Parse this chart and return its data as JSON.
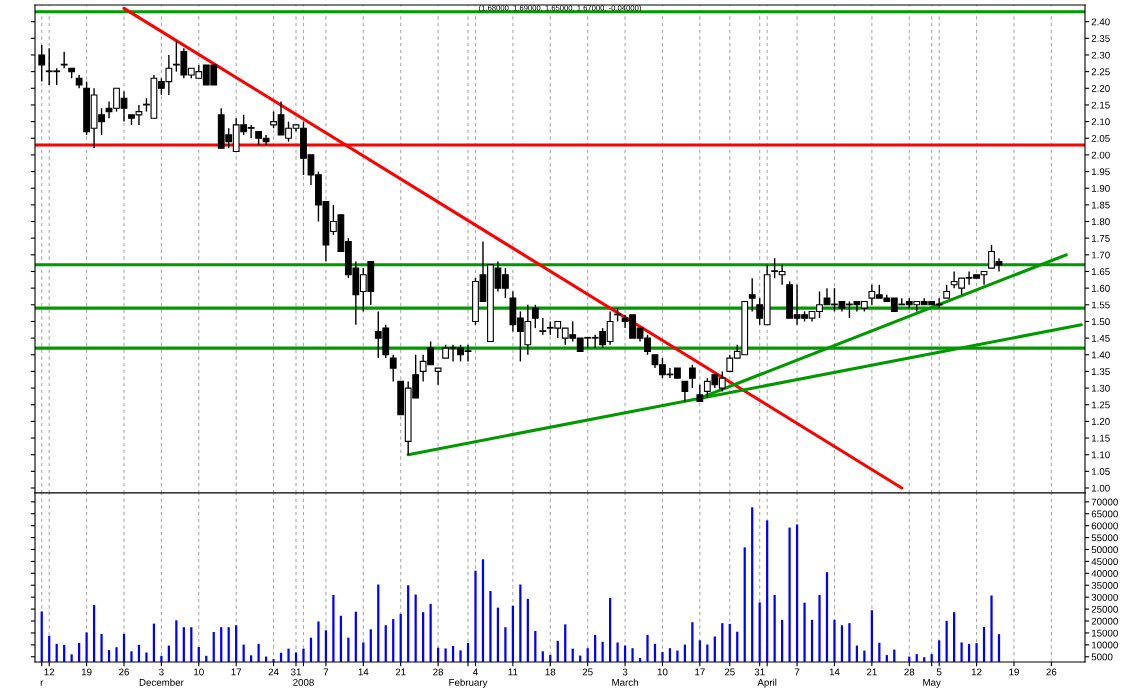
{
  "chart_data": [
    {
      "type": "candlestick",
      "title": "(1.68000, 1.69000, 1.65000, 1.67000, -0.04000)",
      "categories": [
        null,
        null,
        null,
        null,
        null,
        null,
        null,
        null,
        null,
        null,
        null,
        null,
        null,
        null,
        null,
        null,
        null,
        null,
        null,
        null,
        null,
        null,
        null,
        null,
        null,
        null,
        null,
        null,
        null,
        null,
        null,
        null,
        null,
        null,
        null,
        null,
        null,
        null,
        null,
        null,
        null,
        null,
        null,
        null,
        null,
        null,
        null,
        null,
        null,
        null,
        null,
        null,
        null,
        null,
        null,
        null,
        null,
        null,
        null,
        null,
        null,
        null,
        null,
        null,
        null,
        null,
        null,
        null,
        null,
        null,
        null,
        null,
        null,
        null,
        null,
        null,
        null,
        null,
        null,
        null,
        null,
        null,
        null,
        null,
        null,
        null,
        null,
        null,
        null,
        null,
        null,
        null,
        null,
        null,
        null,
        null,
        null,
        null,
        null,
        null,
        null,
        null,
        null,
        null,
        null,
        null,
        null,
        null,
        null,
        null,
        null,
        null,
        null,
        null,
        null,
        null,
        null,
        null,
        null,
        null,
        null,
        null,
        null,
        null,
        null,
        null,
        null,
        null,
        null,
        null,
        null,
        null,
        null,
        null,
        null,
        null,
        null,
        null,
        null,
        null
      ],
      "ohlc": [
        [
          2.3,
          2.33,
          2.22,
          2.27
        ],
        [
          2.25,
          2.32,
          2.21,
          2.25
        ],
        [
          2.25,
          2.26,
          2.21,
          2.25
        ],
        [
          2.27,
          2.31,
          2.26,
          2.27
        ],
        [
          2.26,
          2.26,
          2.23,
          2.25
        ],
        [
          2.23,
          2.24,
          2.2,
          2.21
        ],
        [
          2.2,
          2.22,
          2.06,
          2.07
        ],
        [
          2.08,
          2.2,
          2.02,
          2.18
        ],
        [
          2.12,
          2.14,
          2.06,
          2.1
        ],
        [
          2.14,
          2.16,
          2.11,
          2.13
        ],
        [
          2.14,
          2.2,
          2.13,
          2.2
        ],
        [
          2.17,
          2.19,
          2.1,
          2.14
        ],
        [
          2.12,
          2.12,
          2.09,
          2.11
        ],
        [
          2.12,
          2.15,
          2.09,
          2.13
        ],
        [
          2.15,
          2.17,
          2.13,
          2.15
        ],
        [
          2.11,
          2.24,
          2.11,
          2.23
        ],
        [
          2.22,
          2.23,
          2.18,
          2.2
        ],
        [
          2.22,
          2.3,
          2.18,
          2.26
        ],
        [
          2.27,
          2.34,
          2.25,
          2.27
        ],
        [
          2.31,
          2.32,
          2.23,
          2.24
        ],
        [
          2.24,
          2.26,
          2.23,
          2.26
        ],
        [
          2.23,
          2.27,
          2.23,
          2.25
        ],
        [
          2.27,
          2.27,
          2.21,
          2.21
        ],
        [
          2.27,
          2.27,
          2.21,
          2.21
        ],
        [
          2.12,
          2.14,
          2.02,
          2.02
        ],
        [
          2.06,
          2.08,
          2.02,
          2.04
        ],
        [
          2.01,
          2.11,
          2.01,
          2.09
        ],
        [
          2.09,
          2.12,
          2.06,
          2.07
        ],
        [
          2.08,
          2.09,
          2.05,
          2.08
        ],
        [
          2.07,
          2.07,
          2.03,
          2.05
        ],
        [
          2.05,
          2.06,
          2.03,
          2.04
        ],
        [
          2.09,
          2.13,
          2.08,
          2.1
        ],
        [
          2.12,
          2.16,
          2.06,
          2.06
        ],
        [
          2.05,
          2.1,
          2.04,
          2.08
        ],
        [
          2.08,
          2.09,
          2.07,
          2.09
        ],
        [
          2.08,
          2.1,
          1.94,
          1.99
        ],
        [
          2.0,
          2.0,
          1.91,
          1.94
        ],
        [
          1.94,
          1.95,
          1.8,
          1.85
        ],
        [
          1.86,
          1.86,
          1.68,
          1.73
        ],
        [
          1.77,
          1.85,
          1.76,
          1.8
        ],
        [
          1.82,
          1.82,
          1.71,
          1.71
        ],
        [
          1.74,
          1.75,
          1.63,
          1.64
        ],
        [
          1.66,
          1.68,
          1.49,
          1.58
        ],
        [
          1.59,
          1.66,
          1.53,
          1.64
        ],
        [
          1.68,
          1.68,
          1.55,
          1.59
        ],
        [
          1.47,
          1.53,
          1.39,
          1.45
        ],
        [
          1.48,
          1.49,
          1.39,
          1.4
        ],
        [
          1.39,
          1.4,
          1.32,
          1.36
        ],
        [
          1.32,
          1.32,
          1.22,
          1.22
        ],
        [
          1.14,
          1.32,
          1.1,
          1.3
        ],
        [
          1.34,
          1.4,
          1.27,
          1.27
        ],
        [
          1.35,
          1.4,
          1.32,
          1.38
        ],
        [
          1.42,
          1.44,
          1.37,
          1.37
        ],
        [
          1.35,
          1.36,
          1.31,
          1.36
        ],
        [
          1.39,
          1.43,
          1.39,
          1.42
        ],
        [
          1.42,
          1.43,
          1.38,
          1.42
        ],
        [
          1.42,
          1.43,
          1.38,
          1.4
        ],
        [
          1.41,
          1.43,
          1.38,
          1.41
        ],
        [
          1.5,
          1.63,
          1.49,
          1.62
        ],
        [
          1.64,
          1.74,
          1.56,
          1.56
        ],
        [
          1.44,
          1.67,
          1.44,
          1.67
        ],
        [
          1.66,
          1.68,
          1.59,
          1.6
        ],
        [
          1.64,
          1.66,
          1.57,
          1.6
        ],
        [
          1.57,
          1.59,
          1.47,
          1.49
        ],
        [
          1.51,
          1.53,
          1.38,
          1.47
        ],
        [
          1.43,
          1.55,
          1.4,
          1.5
        ],
        [
          1.54,
          1.55,
          1.48,
          1.51
        ],
        [
          1.47,
          1.51,
          1.46,
          1.47
        ],
        [
          1.48,
          1.5,
          1.46,
          1.48
        ],
        [
          1.48,
          1.5,
          1.45,
          1.5
        ],
        [
          1.45,
          1.48,
          1.43,
          1.48
        ],
        [
          1.46,
          1.5,
          1.44,
          1.45
        ],
        [
          1.45,
          1.45,
          1.41,
          1.41
        ],
        [
          1.45,
          1.45,
          1.42,
          1.45
        ],
        [
          1.45,
          1.46,
          1.42,
          1.45
        ],
        [
          1.47,
          1.48,
          1.42,
          1.43
        ],
        [
          1.44,
          1.53,
          1.43,
          1.5
        ],
        [
          1.52,
          1.54,
          1.5,
          1.52
        ],
        [
          1.51,
          1.52,
          1.48,
          1.5
        ],
        [
          1.52,
          1.52,
          1.45,
          1.45
        ],
        [
          1.48,
          1.48,
          1.44,
          1.45
        ],
        [
          1.45,
          1.46,
          1.4,
          1.41
        ],
        [
          1.4,
          1.4,
          1.36,
          1.37
        ],
        [
          1.37,
          1.39,
          1.33,
          1.34
        ],
        [
          1.34,
          1.36,
          1.33,
          1.34
        ],
        [
          1.36,
          1.36,
          1.33,
          1.33
        ],
        [
          1.32,
          1.32,
          1.26,
          1.29
        ],
        [
          1.36,
          1.37,
          1.3,
          1.33
        ],
        [
          1.28,
          1.31,
          1.26,
          1.26
        ],
        [
          1.29,
          1.33,
          1.27,
          1.32
        ],
        [
          1.34,
          1.34,
          1.3,
          1.31
        ],
        [
          1.3,
          1.35,
          1.29,
          1.33
        ],
        [
          1.35,
          1.4,
          1.35,
          1.39
        ],
        [
          1.39,
          1.43,
          1.39,
          1.41
        ],
        [
          1.4,
          1.56,
          1.4,
          1.56
        ],
        [
          1.58,
          1.63,
          1.53,
          1.57
        ],
        [
          1.55,
          1.57,
          1.49,
          1.51
        ],
        [
          1.49,
          1.67,
          1.49,
          1.64
        ],
        [
          1.65,
          1.69,
          1.63,
          1.65
        ],
        [
          1.64,
          1.67,
          1.61,
          1.65
        ],
        [
          1.61,
          1.62,
          1.51,
          1.51
        ],
        [
          1.52,
          1.61,
          1.49,
          1.51
        ],
        [
          1.52,
          1.53,
          1.5,
          1.51
        ],
        [
          1.51,
          1.53,
          1.5,
          1.53
        ],
        [
          1.53,
          1.59,
          1.51,
          1.55
        ],
        [
          1.57,
          1.6,
          1.55,
          1.55
        ],
        [
          1.55,
          1.6,
          1.53,
          1.55
        ],
        [
          1.56,
          1.56,
          1.53,
          1.54
        ],
        [
          1.55,
          1.56,
          1.51,
          1.55
        ],
        [
          1.56,
          1.56,
          1.53,
          1.55
        ],
        [
          1.54,
          1.56,
          1.53,
          1.56
        ],
        [
          1.57,
          1.61,
          1.55,
          1.59
        ],
        [
          1.58,
          1.61,
          1.57,
          1.57
        ],
        [
          1.57,
          1.58,
          1.56,
          1.56
        ],
        [
          1.57,
          1.57,
          1.53,
          1.53
        ],
        [
          1.55,
          1.57,
          1.55,
          1.55
        ],
        [
          1.56,
          1.57,
          1.54,
          1.55
        ],
        [
          1.55,
          1.56,
          1.53,
          1.56
        ],
        [
          1.56,
          1.57,
          1.55,
          1.55
        ],
        [
          1.56,
          1.56,
          1.55,
          1.55
        ],
        [
          1.55,
          1.57,
          1.54,
          1.55
        ],
        [
          1.57,
          1.61,
          1.57,
          1.59
        ],
        [
          1.61,
          1.65,
          1.6,
          1.62
        ],
        [
          1.6,
          1.63,
          1.58,
          1.63
        ],
        [
          1.63,
          1.65,
          1.61,
          1.63
        ],
        [
          1.64,
          1.64,
          1.63,
          1.63
        ],
        [
          1.64,
          1.65,
          1.61,
          1.65
        ],
        [
          1.66,
          1.73,
          1.66,
          1.71
        ],
        [
          1.68,
          1.69,
          1.65,
          1.67
        ],
        null,
        null,
        null,
        null,
        null,
        null,
        null,
        null,
        null,
        null,
        null
      ],
      "series": [
        {
          "type": "line",
          "color": "#ff0000",
          "values": [
            null,
            null,
            null,
            null,
            null,
            null,
            null,
            null,
            null,
            null,
            null,
            2.44,
            null,
            null,
            null,
            null,
            null,
            null,
            null,
            null,
            null,
            null,
            null,
            null,
            null,
            null,
            null,
            null,
            null,
            null,
            null,
            null,
            null,
            null,
            null,
            null,
            null,
            null,
            null,
            null,
            null,
            null,
            null,
            null,
            null,
            null,
            null,
            null,
            null,
            null,
            null,
            null,
            null,
            null,
            null,
            null,
            null,
            null,
            null,
            null,
            null,
            null,
            null,
            null,
            null,
            null,
            null,
            null,
            null,
            null,
            null,
            null,
            null,
            null,
            null,
            null,
            null,
            null,
            null,
            null,
            null,
            null,
            null,
            null,
            null,
            null,
            null,
            null,
            null,
            null,
            null,
            null,
            null,
            null,
            null,
            null,
            null,
            null,
            null,
            null,
            null,
            null,
            null,
            null,
            null,
            null,
            null,
            null,
            null,
            null,
            null,
            null,
            null,
            null,
            null,
            1.0,
            null,
            null,
            null,
            null,
            null,
            null,
            null,
            null,
            null,
            null,
            null,
            null,
            null,
            null,
            null,
            null,
            null,
            null,
            null,
            null,
            null,
            null,
            null,
            null
          ]
        },
        {
          "type": "line",
          "color": "#009900",
          "values": [
            null,
            null,
            null,
            null,
            null,
            null,
            null,
            null,
            null,
            null,
            null,
            null,
            null,
            null,
            null,
            null,
            null,
            null,
            null,
            null,
            null,
            null,
            null,
            null,
            null,
            null,
            null,
            null,
            null,
            null,
            null,
            null,
            null,
            null,
            null,
            null,
            null,
            null,
            null,
            null,
            null,
            null,
            null,
            null,
            null,
            null,
            null,
            null,
            null,
            1.1,
            null,
            null,
            null,
            null,
            null,
            null,
            null,
            null,
            null,
            null,
            null,
            null,
            null,
            null,
            null,
            null,
            null,
            null,
            null,
            null,
            null,
            null,
            null,
            null,
            null,
            null,
            null,
            null,
            null,
            null,
            null,
            null,
            null,
            null,
            null,
            null,
            null,
            null,
            null,
            null,
            null,
            null,
            null,
            null,
            null,
            null,
            null,
            null,
            null,
            null,
            null,
            null,
            null,
            null,
            null,
            null,
            null,
            null,
            null,
            null,
            null,
            null,
            null,
            null,
            null,
            null,
            null,
            null,
            null,
            null,
            null,
            null,
            null,
            null,
            null,
            null,
            null,
            null,
            null,
            null,
            null,
            null,
            null,
            null,
            null,
            null,
            null,
            null,
            null,
            1.49
          ]
        },
        {
          "type": "line",
          "color": "#009900",
          "values": [
            null,
            null,
            null,
            null,
            null,
            null,
            null,
            null,
            null,
            null,
            null,
            null,
            null,
            null,
            null,
            null,
            null,
            null,
            null,
            null,
            null,
            null,
            null,
            null,
            null,
            null,
            null,
            null,
            null,
            null,
            null,
            null,
            null,
            null,
            null,
            null,
            null,
            null,
            null,
            null,
            null,
            null,
            null,
            null,
            null,
            null,
            null,
            null,
            null,
            null,
            null,
            null,
            null,
            null,
            null,
            null,
            null,
            null,
            null,
            null,
            null,
            null,
            null,
            null,
            null,
            null,
            null,
            null,
            null,
            null,
            null,
            null,
            null,
            null,
            null,
            null,
            null,
            null,
            null,
            null,
            null,
            null,
            null,
            null,
            null,
            null,
            null,
            null,
            1.27,
            null,
            null,
            null,
            null,
            null,
            null,
            null,
            null,
            null,
            null,
            null,
            null,
            null,
            null,
            null,
            null,
            null,
            null,
            null,
            null,
            null,
            null,
            null,
            null,
            null,
            null,
            null,
            null,
            null,
            null,
            null,
            null,
            null,
            null,
            null,
            null,
            null,
            null,
            null,
            null,
            null,
            null,
            null,
            null,
            null,
            null,
            null,
            null,
            1.7,
            null,
            null
          ]
        }
      ],
      "ref_lines": [
        {
          "axis": "y",
          "value": 2.43,
          "color": "#009900"
        },
        {
          "axis": "y",
          "value": 2.03,
          "color": "#ff0000"
        },
        {
          "axis": "y",
          "value": 1.67,
          "color": "#009900"
        },
        {
          "axis": "y",
          "value": 1.54,
          "color": "#009900"
        },
        {
          "axis": "y",
          "value": 1.42,
          "color": "#009900"
        }
      ],
      "ylim": [
        0.985,
        2.45
      ],
      "yticks": [
        {
          "value": 1.0,
          "label": "1.00"
        },
        {
          "value": 1.05,
          "label": "1.05"
        },
        {
          "value": 1.1,
          "label": "1.10"
        },
        {
          "value": 1.15,
          "label": "1.15"
        },
        {
          "value": 1.2,
          "label": "1.20"
        },
        {
          "value": 1.25,
          "label": "1.25"
        },
        {
          "value": 1.3,
          "label": "1.30"
        },
        {
          "value": 1.35,
          "label": "1.35"
        },
        {
          "value": 1.4,
          "label": "1.40"
        },
        {
          "value": 1.45,
          "label": "1.45"
        },
        {
          "value": 1.5,
          "label": "1.50"
        },
        {
          "value": 1.55,
          "label": "1.55"
        },
        {
          "value": 1.6,
          "label": "1.60"
        },
        {
          "value": 1.65,
          "label": "1.65"
        },
        {
          "value": 1.7,
          "label": "1.70"
        },
        {
          "value": 1.75,
          "label": "1.75"
        },
        {
          "value": 1.8,
          "label": "1.80"
        },
        {
          "value": 1.85,
          "label": "1.85"
        },
        {
          "value": 1.9,
          "label": "1.90"
        },
        {
          "value": 1.95,
          "label": "1.95"
        },
        {
          "value": 2.0,
          "label": "2.00"
        },
        {
          "value": 2.05,
          "label": "2.05"
        },
        {
          "value": 2.1,
          "label": "2.10"
        },
        {
          "value": 2.15,
          "label": "2.15"
        },
        {
          "value": 2.2,
          "label": "2.20"
        },
        {
          "value": 2.25,
          "label": "2.25"
        },
        {
          "value": 2.3,
          "label": "2.30"
        },
        {
          "value": 2.35,
          "label": "2.35"
        },
        {
          "value": 2.4,
          "label": "2.40"
        }
      ],
      "grid": "x",
      "tick_labels": "y"
    },
    {
      "type": "bar",
      "color": "#0000ff",
      "categories": [
        "\nr",
        "12",
        null,
        null,
        null,
        null,
        "19",
        null,
        null,
        null,
        null,
        "26",
        null,
        null,
        null,
        null,
        "3\nDecember",
        null,
        null,
        null,
        null,
        "10",
        null,
        null,
        null,
        null,
        "17",
        null,
        null,
        null,
        null,
        "24",
        null,
        null,
        "31",
        "\n2008",
        null,
        null,
        "7",
        null,
        null,
        null,
        null,
        "14",
        null,
        null,
        null,
        null,
        "21",
        null,
        null,
        null,
        null,
        "28",
        null,
        null,
        null,
        "\nFebruary",
        "4",
        null,
        null,
        null,
        null,
        "11",
        null,
        null,
        null,
        null,
        "18",
        null,
        null,
        null,
        null,
        "25",
        null,
        null,
        null,
        null,
        "3\nMarch",
        null,
        null,
        null,
        null,
        "10",
        null,
        null,
        null,
        null,
        "17",
        null,
        null,
        null,
        "25",
        null,
        null,
        null,
        "31",
        "\nApril",
        null,
        null,
        null,
        "7",
        null,
        null,
        null,
        null,
        "14",
        null,
        null,
        null,
        null,
        "21",
        null,
        null,
        null,
        null,
        "28",
        null,
        null,
        "\nMay",
        "5",
        null,
        null,
        null,
        null,
        "12",
        null,
        null,
        null,
        null,
        "19",
        null,
        null,
        null,
        null,
        "26",
        null,
        null,
        null,
        null
      ],
      "values": [
        24000,
        13800,
        10400,
        10000,
        6000,
        10800,
        15200,
        26700,
        14600,
        7800,
        9000,
        14600,
        7300,
        10000,
        6800,
        18900,
        5400,
        9700,
        20300,
        17400,
        17400,
        9100,
        5400,
        15400,
        17400,
        17400,
        18200,
        10100,
        5600,
        10400,
        5100,
        4000,
        6700,
        8400,
        6800,
        8400,
        13000,
        19800,
        16100,
        30900,
        22200,
        13000,
        23900,
        11000,
        16500,
        35300,
        18200,
        20800,
        23000,
        35000,
        31100,
        23700,
        27200,
        8800,
        8500,
        9500,
        7700,
        10800,
        41100,
        45900,
        32600,
        25600,
        17400,
        26400,
        35300,
        29300,
        15800,
        7300,
        5800,
        11700,
        18600,
        8400,
        5500,
        8600,
        14200,
        11300,
        29700,
        11000,
        9700,
        8600,
        4500,
        14200,
        10400,
        7000,
        8600,
        7600,
        10100,
        19500,
        11900,
        10100,
        13500,
        19100,
        18800,
        15500,
        50900,
        67700,
        27800,
        62200,
        30900,
        20500,
        59200,
        60500,
        27700,
        20500,
        30900,
        40500,
        20500,
        18200,
        19100,
        9700,
        7600,
        24500,
        10900,
        5700,
        8000,
        null,
        5100,
        6100,
        4800,
        6100,
        11900,
        20100,
        23700,
        11000,
        10400,
        10700,
        17500,
        30700,
        14500,
        null,
        null,
        null,
        null,
        null,
        null,
        null,
        null,
        null,
        null,
        null
      ],
      "ylim": [
        2800,
        73700
      ],
      "yticks": [
        5000,
        10000,
        15000,
        20000,
        25000,
        30000,
        35000,
        40000,
        45000,
        50000,
        55000,
        60000,
        65000,
        70000
      ],
      "grid": "x"
    }
  ]
}
